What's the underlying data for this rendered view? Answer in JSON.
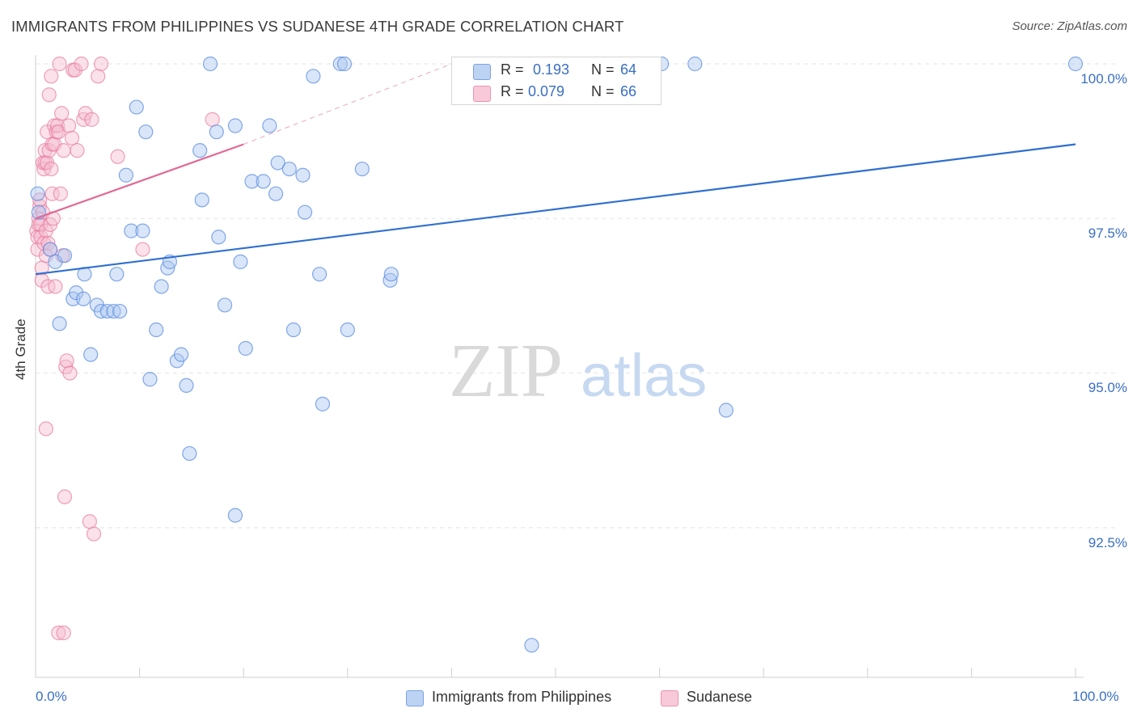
{
  "title": "IMMIGRANTS FROM PHILIPPINES VS SUDANESE 4TH GRADE CORRELATION CHART",
  "source": "Source: ZipAtlas.com",
  "legend": {
    "blue": {
      "r_label": "R =",
      "r_value": "0.193",
      "n_label": "N =",
      "n_value": "64"
    },
    "pink": {
      "r_label": "R =",
      "r_value": "0.079",
      "n_label": "N =",
      "n_value": "66"
    }
  },
  "bottom_legend": {
    "series1": "Immigrants from Philippines",
    "series2": "Sudanese"
  },
  "watermark": {
    "part1": "ZIP",
    "part2": "atlas"
  },
  "colors": {
    "blue": "#5b8ee0",
    "blue_fill": "#aac6f0",
    "pink": "#e87aa0",
    "pink_fill": "#f5bcd0",
    "blue_line": "#2f6fd0",
    "pink_line": "#e06a96",
    "axis_text": "#3a6fc4"
  },
  "chart_data": {
    "type": "scatter",
    "xlabel": "",
    "ylabel": "4th Grade",
    "xlim": [
      0,
      100
    ],
    "ylim": [
      90.2,
      100.2
    ],
    "x_tick_labels": [
      {
        "value": 0,
        "label": "0.0%"
      },
      {
        "value": 100,
        "label": "100.0%"
      }
    ],
    "y_ticks": [
      {
        "value": 92.5,
        "label": "92.5%"
      },
      {
        "value": 95.0,
        "label": "95.0%"
      },
      {
        "value": 97.5,
        "label": "97.5%"
      },
      {
        "value": 100.0,
        "label": "100.0%"
      }
    ],
    "x_minor_ticks": [
      0,
      10,
      20,
      30,
      40,
      50,
      60,
      70,
      80,
      90,
      100
    ],
    "grid": true,
    "series": [
      {
        "name": "Immigrants from Philippines",
        "color": "#5b8ee0",
        "trend": {
          "x0": 0,
          "y0": 96.6,
          "x1": 100,
          "y1": 98.7
        },
        "points": [
          [
            0.2,
            97.9
          ],
          [
            0.3,
            97.6
          ],
          [
            1.4,
            97.0
          ],
          [
            1.9,
            96.8
          ],
          [
            2.8,
            96.9
          ],
          [
            3.6,
            96.2
          ],
          [
            3.9,
            96.3
          ],
          [
            4.6,
            96.2
          ],
          [
            4.7,
            96.6
          ],
          [
            2.3,
            95.8
          ],
          [
            5.3,
            95.3
          ],
          [
            5.9,
            96.1
          ],
          [
            6.3,
            96.0
          ],
          [
            6.9,
            96.0
          ],
          [
            7.5,
            96.0
          ],
          [
            8.1,
            96.0
          ],
          [
            7.8,
            96.6
          ],
          [
            8.7,
            98.2
          ],
          [
            9.2,
            97.3
          ],
          [
            9.7,
            99.3
          ],
          [
            10.3,
            97.3
          ],
          [
            10.6,
            98.9
          ],
          [
            11.0,
            94.9
          ],
          [
            11.6,
            95.7
          ],
          [
            12.1,
            96.4
          ],
          [
            12.7,
            96.7
          ],
          [
            12.9,
            96.8
          ],
          [
            13.6,
            95.2
          ],
          [
            14.0,
            95.3
          ],
          [
            14.5,
            94.8
          ],
          [
            14.8,
            93.7
          ],
          [
            15.8,
            98.6
          ],
          [
            16.0,
            97.8
          ],
          [
            16.8,
            100.0
          ],
          [
            17.4,
            98.9
          ],
          [
            17.6,
            97.2
          ],
          [
            18.2,
            96.1
          ],
          [
            19.2,
            99.0
          ],
          [
            19.2,
            92.7
          ],
          [
            19.7,
            96.8
          ],
          [
            20.2,
            95.4
          ],
          [
            20.8,
            98.1
          ],
          [
            21.9,
            98.1
          ],
          [
            22.5,
            99.0
          ],
          [
            23.1,
            97.9
          ],
          [
            23.3,
            98.4
          ],
          [
            24.4,
            98.3
          ],
          [
            24.8,
            95.7
          ],
          [
            25.7,
            98.2
          ],
          [
            25.9,
            97.6
          ],
          [
            26.7,
            99.8
          ],
          [
            27.3,
            96.6
          ],
          [
            27.6,
            94.5
          ],
          [
            29.3,
            100.0
          ],
          [
            29.7,
            100.0
          ],
          [
            30.0,
            95.7
          ],
          [
            31.4,
            98.3
          ],
          [
            34.1,
            96.5
          ],
          [
            34.2,
            96.6
          ],
          [
            47.7,
            90.6
          ],
          [
            60.2,
            100.0
          ],
          [
            63.4,
            100.0
          ],
          [
            66.4,
            94.4
          ],
          [
            100.0,
            100.0
          ]
        ]
      },
      {
        "name": "Sudanese",
        "color": "#e87aa0",
        "trend": {
          "x0": 0,
          "y0": 97.5,
          "x1": 20,
          "y1": 98.7,
          "dashed_to": {
            "x": 40,
            "y": 100.0
          }
        },
        "points": [
          [
            0.1,
            97.3
          ],
          [
            0.2,
            97.0
          ],
          [
            0.2,
            97.2
          ],
          [
            0.3,
            97.5
          ],
          [
            0.3,
            97.4
          ],
          [
            0.4,
            97.7
          ],
          [
            0.4,
            97.8
          ],
          [
            0.5,
            97.4
          ],
          [
            0.5,
            97.2
          ],
          [
            0.6,
            96.7
          ],
          [
            0.6,
            96.5
          ],
          [
            0.7,
            97.6
          ],
          [
            0.7,
            98.4
          ],
          [
            0.8,
            98.3
          ],
          [
            0.8,
            97.1
          ],
          [
            0.9,
            98.6
          ],
          [
            0.9,
            98.4
          ],
          [
            1.0,
            96.9
          ],
          [
            1.0,
            97.3
          ],
          [
            1.1,
            98.9
          ],
          [
            1.1,
            98.4
          ],
          [
            1.2,
            97.1
          ],
          [
            1.2,
            96.4
          ],
          [
            1.3,
            99.5
          ],
          [
            1.3,
            98.6
          ],
          [
            1.4,
            97.4
          ],
          [
            1.4,
            97.0
          ],
          [
            1.5,
            98.3
          ],
          [
            1.5,
            99.8
          ],
          [
            1.6,
            98.7
          ],
          [
            1.6,
            97.9
          ],
          [
            1.7,
            97.5
          ],
          [
            1.8,
            98.7
          ],
          [
            1.8,
            99.0
          ],
          [
            1.9,
            96.4
          ],
          [
            2.0,
            98.9
          ],
          [
            2.1,
            99.0
          ],
          [
            2.2,
            98.9
          ],
          [
            2.3,
            100.0
          ],
          [
            2.4,
            97.9
          ],
          [
            2.5,
            99.2
          ],
          [
            2.6,
            96.9
          ],
          [
            2.7,
            98.6
          ],
          [
            2.8,
            93.0
          ],
          [
            2.9,
            95.1
          ],
          [
            3.0,
            95.2
          ],
          [
            3.2,
            99.0
          ],
          [
            3.3,
            95.0
          ],
          [
            3.5,
            98.8
          ],
          [
            3.6,
            99.9
          ],
          [
            3.8,
            99.9
          ],
          [
            4.0,
            98.6
          ],
          [
            4.4,
            100.0
          ],
          [
            4.6,
            99.1
          ],
          [
            4.8,
            99.2
          ],
          [
            5.2,
            92.6
          ],
          [
            5.4,
            99.1
          ],
          [
            5.6,
            92.4
          ],
          [
            6.0,
            99.8
          ],
          [
            6.3,
            100.0
          ],
          [
            7.9,
            98.5
          ],
          [
            10.3,
            97.0
          ],
          [
            17.0,
            99.1
          ],
          [
            2.2,
            90.8
          ],
          [
            2.7,
            90.8
          ],
          [
            1.0,
            94.1
          ]
        ]
      }
    ]
  }
}
